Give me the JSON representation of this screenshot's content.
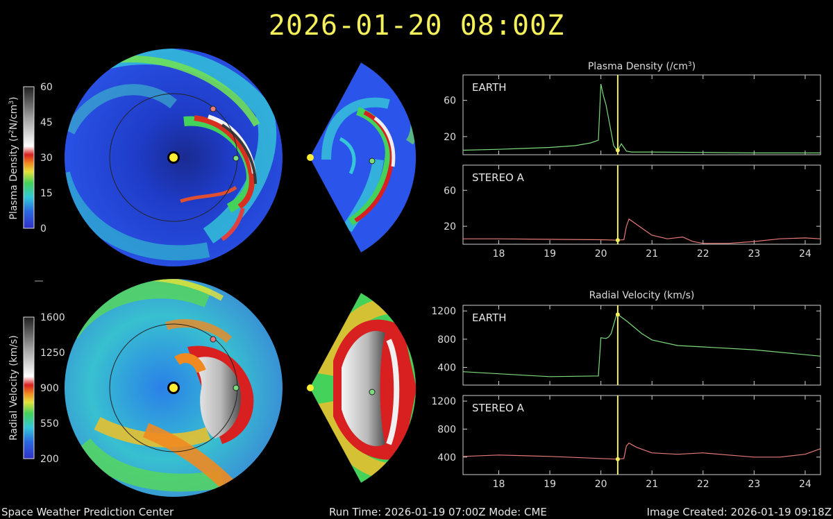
{
  "header": {
    "timestamp": "2026-01-20  08:00Z"
  },
  "footer": {
    "left": "Space Weather Prediction Center",
    "center": "Run Time: 2026-01-19 07:00Z  Mode: CME",
    "right": "Image Created: 2026-01-19 09:18Z"
  },
  "colorbars": {
    "density": {
      "label": "Plasma Density (r",
      "label_sup": "2",
      "label_mid": "N/cm",
      "label_sup2": "3",
      "label_end": ")",
      "ticks": [
        "60",
        "45",
        "30",
        "15",
        "0"
      ],
      "range": [
        0,
        60
      ]
    },
    "velocity": {
      "label": "Radial Velocity (km/s)",
      "ticks": [
        "1600",
        "1250",
        "900",
        "550",
        "200"
      ],
      "range": [
        200,
        1600
      ]
    }
  },
  "markers": {
    "sun_color": "#ffee33",
    "earth_color": "#7ddc7d",
    "stereo_color": "#e87a7a"
  },
  "colors": {
    "accent": "#f4f05a",
    "earth_line": "#7ddc7d",
    "stereo_line": "#e87a7a",
    "time_cursor": "#f4f05a"
  },
  "chart_data": [
    {
      "type": "line",
      "title": "Plasma Density (/cm",
      "title_sup": "3",
      "title_end": ")",
      "xlim": [
        17.3,
        24.3
      ],
      "x_ticks": [
        "18",
        "19",
        "20",
        "21",
        "22",
        "23",
        "24"
      ],
      "current_time": 20.33,
      "panels": [
        {
          "label": "EARTH",
          "color": "#7ddc7d",
          "ylim": [
            0,
            88
          ],
          "y_ticks": [
            "60",
            "20"
          ],
          "y_tick_values": [
            60,
            20
          ],
          "x": [
            17.3,
            18,
            18.5,
            19,
            19.5,
            19.8,
            19.95,
            20.0,
            20.05,
            20.1,
            20.15,
            20.2,
            20.25,
            20.3,
            20.33,
            20.4,
            20.45,
            20.5,
            20.6,
            21,
            22,
            23,
            24.3
          ],
          "y": [
            5,
            6,
            7,
            8,
            10,
            13,
            16,
            78,
            65,
            55,
            40,
            25,
            10,
            6,
            5,
            12,
            8,
            4,
            3,
            3,
            2.5,
            2,
            2
          ]
        },
        {
          "label": "STEREO A",
          "color": "#e87a7a",
          "ylim": [
            0,
            88
          ],
          "y_ticks": [
            "60",
            "20"
          ],
          "y_tick_values": [
            60,
            20
          ],
          "x": [
            17.3,
            18,
            19,
            20,
            20.33,
            20.45,
            20.5,
            20.55,
            20.6,
            20.8,
            21,
            21.3,
            21.6,
            21.8,
            22,
            22.5,
            23,
            23.5,
            24,
            24.3
          ],
          "y": [
            6,
            6,
            5.5,
            5,
            4.5,
            5,
            20,
            28,
            26,
            18,
            10,
            6,
            8,
            3,
            1,
            1,
            3,
            6,
            7,
            6
          ]
        }
      ]
    },
    {
      "type": "line",
      "title": "Radial Velocity (km/s)",
      "xlim": [
        17.3,
        24.3
      ],
      "x_ticks": [
        "18",
        "19",
        "20",
        "21",
        "22",
        "23",
        "24"
      ],
      "current_time": 20.33,
      "panels": [
        {
          "label": "EARTH",
          "color": "#7ddc7d",
          "ylim": [
            150,
            1280
          ],
          "y_ticks": [
            "1200",
            "800",
            "400"
          ],
          "y_tick_values": [
            1200,
            800,
            400
          ],
          "x": [
            17.3,
            18,
            18.5,
            19,
            19.5,
            19.95,
            20.0,
            20.1,
            20.15,
            20.2,
            20.3,
            20.33,
            20.5,
            20.8,
            21,
            21.5,
            22,
            23,
            24.3
          ],
          "y": [
            340,
            310,
            290,
            270,
            275,
            280,
            820,
            810,
            830,
            880,
            1130,
            1150,
            1060,
            880,
            790,
            710,
            690,
            650,
            560
          ]
        },
        {
          "label": "STEREO A",
          "color": "#e87a7a",
          "ylim": [
            150,
            1280
          ],
          "y_ticks": [
            "1200",
            "800",
            "400"
          ],
          "y_tick_values": [
            1200,
            800,
            400
          ],
          "x": [
            17.3,
            18,
            19,
            20,
            20.33,
            20.45,
            20.5,
            20.55,
            20.7,
            21,
            21.5,
            22,
            22.5,
            23,
            23.5,
            24,
            24.3
          ],
          "y": [
            410,
            430,
            410,
            380,
            370,
            380,
            560,
            600,
            540,
            460,
            440,
            460,
            430,
            400,
            400,
            440,
            520
          ]
        }
      ]
    }
  ]
}
